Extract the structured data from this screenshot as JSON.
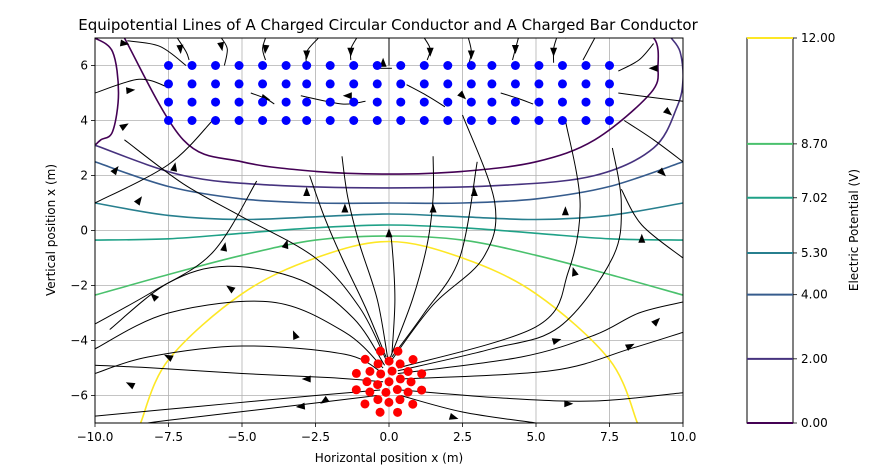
{
  "chart_data": {
    "type": "contour",
    "title": "Equipotential Lines of A Charged Circular Conductor and A Charged Bar Conductor",
    "xlabel": "Horizontal position x (m)",
    "ylabel": "Vertical position x (m)",
    "xlim": [
      -10,
      10
    ],
    "ylim": [
      -7,
      7
    ],
    "x_ticks": [
      -10.0,
      -7.5,
      -5.0,
      -2.5,
      0.0,
      2.5,
      5.0,
      7.5,
      10.0
    ],
    "x_tick_labels": [
      "−10.0",
      "−7.5",
      "−5.0",
      "−2.5",
      "0.0",
      "2.5",
      "5.0",
      "7.5",
      "10.0"
    ],
    "y_ticks": [
      -6,
      -4,
      -2,
      0,
      2,
      4,
      6
    ],
    "y_tick_labels": [
      "−6",
      "−4",
      "−2",
      "0",
      "2",
      "4",
      "6"
    ],
    "grid": true,
    "colorbar": {
      "label": "Electric Potential (V)",
      "range": [
        0.0,
        12.0
      ],
      "levels": [
        0.0,
        2.0,
        4.0,
        5.3,
        7.02,
        8.7,
        12.0
      ],
      "tick_labels": [
        "0.00",
        "2.00",
        "4.00",
        "5.30",
        "7.02",
        "8.70",
        "12.00"
      ],
      "level_colors": [
        "#440154",
        "#46327e",
        "#365c8d",
        "#277f8e",
        "#1fa187",
        "#4ac16d",
        "#fde725"
      ]
    },
    "bar_conductor": {
      "color": "#0000ff",
      "x": [
        -7.5,
        -6.7,
        -5.9,
        -5.1,
        -4.3,
        -3.5,
        -2.8,
        -2.0,
        -1.2,
        -0.4,
        0.4,
        1.2,
        2.0,
        2.8,
        3.5,
        4.3,
        5.1,
        5.9,
        6.7,
        7.5
      ],
      "y": [
        6.0,
        5.33,
        4.67,
        4.0
      ]
    },
    "circular_conductor": {
      "color": "#ff0000",
      "center": [
        0.0,
        -5.5
      ],
      "rings": [
        {
          "radius": 0.0,
          "points": 1
        },
        {
          "radius": 0.4,
          "points": 6
        },
        {
          "radius": 0.75,
          "points": 12
        },
        {
          "radius": 1.15,
          "points": 12
        }
      ]
    },
    "equipotential_lines": [
      {
        "level": 0.0,
        "x": [
          -9.0,
          -7.0,
          -5.0,
          -2.5,
          0.0,
          2.5,
          5.0,
          7.0,
          8.9,
          9.15,
          9.0,
          8.0,
          6.5,
          6.0
        ],
        "y": [
          7.0,
          3.3,
          2.5,
          2.15,
          2.05,
          2.15,
          2.5,
          3.3,
          5.0,
          6.0,
          7.0,
          7.3,
          7.2,
          7.0
        ]
      },
      {
        "level": 0.0,
        "x": [
          -10.0,
          -9.4,
          -9.2,
          -9.4,
          -9.8,
          -10.0
        ],
        "y": [
          7.0,
          6.5,
          5.0,
          3.6,
          3.3,
          3.1
        ]
      },
      {
        "level": 2.0,
        "x": [
          -10.0,
          -7.0,
          -4.0,
          0.0,
          4.0,
          7.0,
          9.0,
          9.8,
          10.0,
          9.9,
          9.6
        ],
        "y": [
          3.1,
          2.0,
          1.65,
          1.55,
          1.65,
          2.0,
          3.0,
          4.5,
          5.5,
          6.5,
          7.0
        ]
      },
      {
        "level": 4.0,
        "x": [
          -10.0,
          -7.5,
          -5.0,
          -2.5,
          0.0,
          2.5,
          5.0,
          7.5,
          10.0
        ],
        "y": [
          2.5,
          1.6,
          1.15,
          1.0,
          1.0,
          1.0,
          1.15,
          1.6,
          2.5
        ]
      },
      {
        "level": 5.3,
        "x": [
          -10.0,
          -7.5,
          -5.0,
          -2.5,
          0.0,
          2.5,
          5.0,
          7.5,
          10.0
        ],
        "y": [
          1.0,
          0.55,
          0.4,
          0.5,
          0.6,
          0.5,
          0.4,
          0.55,
          1.0
        ]
      },
      {
        "level": 7.02,
        "x": [
          -10.0,
          -7.5,
          -5.0,
          -2.5,
          0.0,
          2.5,
          5.0,
          7.5,
          10.0
        ],
        "y": [
          -0.35,
          -0.3,
          -0.1,
          0.1,
          0.2,
          0.1,
          -0.1,
          -0.3,
          -0.35
        ]
      },
      {
        "level": 8.7,
        "x": [
          -10.0,
          -7.5,
          -5.0,
          -2.5,
          0.0,
          2.5,
          5.0,
          7.5,
          10.0
        ],
        "y": [
          -2.35,
          -1.6,
          -0.9,
          -0.35,
          -0.2,
          -0.35,
          -0.9,
          -1.6,
          -2.35
        ]
      },
      {
        "level": 12.0,
        "x": [
          -8.45,
          -7.5,
          -5.0,
          -2.5,
          0.0,
          2.5,
          5.0,
          7.5,
          8.45
        ],
        "y": [
          -7.0,
          -4.7,
          -2.3,
          -1.0,
          -0.4,
          -1.0,
          -2.3,
          -4.7,
          -7.0
        ]
      }
    ],
    "field_lines": [
      {
        "x": [
          -0.2,
          -2.0,
          -5.0,
          -8.0,
          -10.0
        ],
        "y": [
          -5.5,
          -5.35,
          -5.2,
          -5.0,
          -4.9
        ]
      },
      {
        "x": [
          -0.3,
          -3.0,
          -6.5,
          -10.0
        ],
        "y": [
          -5.8,
          -6.05,
          -6.4,
          -6.75
        ]
      },
      {
        "x": [
          -0.2,
          -1.5,
          -5.0,
          -8.2,
          -10.0
        ],
        "y": [
          -5.2,
          -4.5,
          -4.2,
          -4.6,
          -5.2
        ]
      },
      {
        "x": [
          -0.2,
          -1.5,
          -4.0,
          -7.5,
          -10.0
        ],
        "y": [
          -5.0,
          -3.7,
          -2.6,
          -3.0,
          -4.3
        ]
      },
      {
        "x": [
          -0.15,
          -1.2,
          -3.0,
          -5.5,
          -7.5,
          -9.5
        ],
        "y": [
          -4.9,
          -3.2,
          -1.8,
          -1.3,
          -1.9,
          -3.6
        ]
      },
      {
        "x": [
          -0.1,
          -1.0,
          -2.5,
          -5.0,
          -7.0,
          -9.0
        ],
        "y": [
          -4.7,
          -2.8,
          -1.0,
          0.5,
          1.7,
          3.3
        ]
      },
      {
        "x": [
          -0.1,
          -0.8,
          -1.6,
          -2.2,
          -2.7
        ],
        "y": [
          -4.6,
          -2.8,
          -1.0,
          0.5,
          2.0
        ]
      },
      {
        "x": [
          -0.05,
          -0.4,
          -1.0,
          -1.4,
          -1.6
        ],
        "y": [
          -4.6,
          -2.5,
          -0.5,
          1.2,
          2.7
        ]
      },
      {
        "x": [
          0.1,
          0.2,
          0.1,
          0.0
        ],
        "y": [
          -4.5,
          -2.5,
          -0.5,
          0.0
        ]
      },
      {
        "x": [
          0.05,
          0.8,
          1.3,
          1.5,
          1.5
        ],
        "y": [
          -4.6,
          -2.5,
          -0.5,
          1.2,
          2.7
        ]
      },
      {
        "x": [
          0.1,
          1.2,
          2.4,
          3.0
        ],
        "y": [
          -4.6,
          -3.0,
          -1.0,
          2.5
        ]
      },
      {
        "x": [
          0.1,
          1.5,
          3.2,
          3.6,
          2.5
        ],
        "y": [
          -4.7,
          -2.7,
          -1.0,
          1.0,
          4.2
        ]
      },
      {
        "x": [
          0.3,
          5.0,
          6.1,
          6.5,
          6.0
        ],
        "y": [
          -5.0,
          -3.5,
          -1.5,
          1.0,
          4.0
        ]
      },
      {
        "x": [
          0.3,
          3.5,
          5.8,
          7.6,
          7.9,
          7.6
        ],
        "y": [
          -5.1,
          -4.3,
          -3.5,
          -1.0,
          1.0,
          3.0
        ]
      },
      {
        "x": [
          0.3,
          4.5,
          7.0,
          8.5,
          10.0
        ],
        "y": [
          -5.2,
          -4.6,
          -3.8,
          -3.0,
          -2.6
        ]
      },
      {
        "x": [
          0.4,
          5.5,
          8.2,
          10.0
        ],
        "y": [
          -5.4,
          -5.1,
          -4.3,
          -3.7
        ]
      },
      {
        "x": [
          0.4,
          4.0,
          7.0,
          10.0
        ],
        "y": [
          -5.8,
          -6.1,
          -6.2,
          -5.9
        ]
      },
      {
        "x": [
          0.4,
          2.5,
          5.0,
          7.0,
          7.5
        ],
        "y": [
          -6.0,
          -6.6,
          -7.0,
          -7.3,
          -7.4
        ]
      },
      {
        "x": [
          -0.4,
          -3.5,
          -7.5,
          -9.5,
          -10.0
        ],
        "y": [
          -6.0,
          -6.4,
          -6.9,
          -7.2,
          -7.3
        ]
      },
      {
        "x": [
          -10.0,
          -8.0,
          -6.0,
          -4.5
        ],
        "y": [
          -3.4,
          -2.2,
          -0.8,
          1.8
        ]
      },
      {
        "x": [
          -10.0,
          -7.5,
          -6.0
        ],
        "y": [
          1.0,
          2.4,
          4.0
        ]
      },
      {
        "x": [
          -10.0,
          -8.5,
          -7.5
        ],
        "y": [
          5.0,
          5.5,
          5.2
        ]
      },
      {
        "x": [
          -8.9,
          -7.8,
          -6.9
        ],
        "y": [
          6.9,
          6.7,
          6.0
        ]
      },
      {
        "x": [
          -7.2,
          -6.9,
          -6.8
        ],
        "y": [
          7.0,
          6.5,
          6.2
        ]
      },
      {
        "x": [
          -5.7,
          -5.5,
          -5.6
        ],
        "y": [
          7.0,
          6.6,
          6.0
        ]
      },
      {
        "x": [
          -4.2,
          -4.3,
          -4.2
        ],
        "y": [
          7.0,
          6.6,
          6.2
        ]
      },
      {
        "x": [
          -2.4,
          -2.8,
          -2.8
        ],
        "y": [
          7.0,
          6.5,
          6.0
        ]
      },
      {
        "x": [
          -1.1,
          -1.3,
          -1.3
        ],
        "y": [
          7.0,
          6.6,
          6.2
        ]
      },
      {
        "x": [
          0.0,
          0.0,
          0.0
        ],
        "y": [
          7.0,
          6.5,
          6.0
        ]
      },
      {
        "x": [
          1.2,
          1.4,
          1.3
        ],
        "y": [
          7.0,
          6.6,
          6.2
        ]
      },
      {
        "x": [
          2.7,
          2.8,
          2.7
        ],
        "y": [
          7.0,
          6.5,
          6.0
        ]
      },
      {
        "x": [
          4.4,
          4.3,
          4.2
        ],
        "y": [
          7.0,
          6.6,
          6.2
        ]
      },
      {
        "x": [
          5.7,
          5.6,
          5.6
        ],
        "y": [
          7.0,
          6.6,
          6.1
        ]
      },
      {
        "x": [
          7.0,
          6.8,
          6.6
        ],
        "y": [
          7.0,
          6.6,
          6.2
        ]
      },
      {
        "x": [
          9.0,
          8.5,
          7.8
        ],
        "y": [
          6.8,
          6.2,
          5.8
        ]
      },
      {
        "x": [
          10.0,
          9.0,
          8.0
        ],
        "y": [
          2.5,
          3.3,
          4.0
        ]
      },
      {
        "x": [
          10.0,
          8.5,
          7.8
        ],
        "y": [
          4.7,
          4.9,
          5.0
        ]
      },
      {
        "x": [
          10.0,
          8.6,
          7.9
        ],
        "y": [
          -1.0,
          0.2,
          1.5
        ]
      },
      {
        "x": [
          -3.0,
          -1.6,
          -0.8
        ],
        "y": [
          4.9,
          4.6,
          4.7
        ]
      },
      {
        "x": [
          0.6,
          1.3,
          1.9
        ],
        "y": [
          5.3,
          4.9,
          4.5
        ]
      },
      {
        "x": [
          3.8,
          4.4,
          4.9
        ],
        "y": [
          5.0,
          4.8,
          4.6
        ]
      },
      {
        "x": [
          -4.7,
          -4.2,
          -3.9
        ],
        "y": [
          5.0,
          4.8,
          4.6
        ]
      },
      {
        "x": [
          -0.3,
          0.0,
          0.1
        ],
        "y": [
          5.9,
          5.9,
          5.9
        ]
      }
    ],
    "arrows": [
      {
        "x": -9.0,
        "y": 6.8,
        "dir": [
          1,
          -0.15
        ]
      },
      {
        "x": -7.1,
        "y": 6.6,
        "dir": [
          0.1,
          -1
        ]
      },
      {
        "x": -5.7,
        "y": 6.7,
        "dir": [
          0.2,
          -1
        ]
      },
      {
        "x": -4.2,
        "y": 6.6,
        "dir": [
          -0.1,
          -1
        ]
      },
      {
        "x": -2.8,
        "y": 6.4,
        "dir": [
          0,
          -1
        ]
      },
      {
        "x": -1.3,
        "y": 6.5,
        "dir": [
          0,
          -1
        ]
      },
      {
        "x": 1.4,
        "y": 6.5,
        "dir": [
          0,
          -1
        ]
      },
      {
        "x": 2.8,
        "y": 6.4,
        "dir": [
          0,
          -1
        ]
      },
      {
        "x": 4.3,
        "y": 6.6,
        "dir": [
          0,
          -1
        ]
      },
      {
        "x": 5.6,
        "y": 6.5,
        "dir": [
          0,
          -1
        ]
      },
      {
        "x": 9.0,
        "y": 5.9,
        "dir": [
          -1,
          0
        ]
      },
      {
        "x": -8.8,
        "y": 5.1,
        "dir": [
          1,
          0.1
        ]
      },
      {
        "x": -9.0,
        "y": 3.8,
        "dir": [
          1,
          0.6
        ]
      },
      {
        "x": -9.3,
        "y": 2.2,
        "dir": [
          0.6,
          0.8
        ]
      },
      {
        "x": -7.3,
        "y": 2.3,
        "dir": [
          0.2,
          1
        ]
      },
      {
        "x": -8.5,
        "y": 1.1,
        "dir": [
          0.5,
          0.7
        ]
      },
      {
        "x": -5.6,
        "y": -0.6,
        "dir": [
          0.2,
          1
        ]
      },
      {
        "x": -3.5,
        "y": -0.5,
        "dir": [
          0.3,
          1
        ]
      },
      {
        "x": -2.8,
        "y": 1.4,
        "dir": [
          0,
          1
        ]
      },
      {
        "x": -1.5,
        "y": 0.8,
        "dir": [
          0,
          1
        ]
      },
      {
        "x": 0.0,
        "y": -0.1,
        "dir": [
          0,
          1
        ]
      },
      {
        "x": 1.5,
        "y": 0.8,
        "dir": [
          0,
          1
        ]
      },
      {
        "x": 2.9,
        "y": 1.4,
        "dir": [
          0,
          1
        ]
      },
      {
        "x": 6.0,
        "y": 0.7,
        "dir": [
          0,
          1
        ]
      },
      {
        "x": 8.6,
        "y": -0.3,
        "dir": [
          0,
          1
        ]
      },
      {
        "x": 9.5,
        "y": 4.3,
        "dir": [
          0.6,
          -0.5
        ]
      },
      {
        "x": 9.3,
        "y": 2.1,
        "dir": [
          0.5,
          -0.5
        ]
      },
      {
        "x": 2.5,
        "y": 4.9,
        "dir": [
          0.5,
          -0.5
        ]
      },
      {
        "x": -0.2,
        "y": 6.1,
        "dir": [
          0,
          0.5
        ]
      },
      {
        "x": -1.4,
        "y": 4.9,
        "dir": [
          -1,
          0
        ]
      },
      {
        "x": -4.2,
        "y": 4.8,
        "dir": [
          1,
          -0.3
        ]
      },
      {
        "x": -8.0,
        "y": -2.4,
        "dir": [
          -0.6,
          0.6
        ]
      },
      {
        "x": -5.4,
        "y": -2.1,
        "dir": [
          -0.7,
          0.5
        ]
      },
      {
        "x": -7.5,
        "y": -4.6,
        "dir": [
          -1,
          0.5
        ]
      },
      {
        "x": -8.8,
        "y": -5.6,
        "dir": [
          -1,
          0.5
        ]
      },
      {
        "x": -2.8,
        "y": -5.4,
        "dir": [
          -1,
          0
        ]
      },
      {
        "x": -3.0,
        "y": -6.4,
        "dir": [
          -1,
          -0.1
        ]
      },
      {
        "x": -2.2,
        "y": -6.2,
        "dir": [
          -0.6,
          -0.4
        ]
      },
      {
        "x": 6.1,
        "y": -6.3,
        "dir": [
          1,
          0
        ]
      },
      {
        "x": 5.7,
        "y": -4.0,
        "dir": [
          1,
          0.3
        ]
      },
      {
        "x": 8.2,
        "y": -4.2,
        "dir": [
          1,
          0.5
        ]
      },
      {
        "x": 9.1,
        "y": -3.3,
        "dir": [
          0.7,
          0.7
        ]
      },
      {
        "x": 6.3,
        "y": -1.5,
        "dir": [
          -0.3,
          1
        ]
      },
      {
        "x": 2.2,
        "y": -6.8,
        "dir": [
          1,
          -0.3
        ]
      },
      {
        "x": -3.2,
        "y": -3.8,
        "dir": [
          -0.3,
          0.7
        ]
      }
    ]
  }
}
